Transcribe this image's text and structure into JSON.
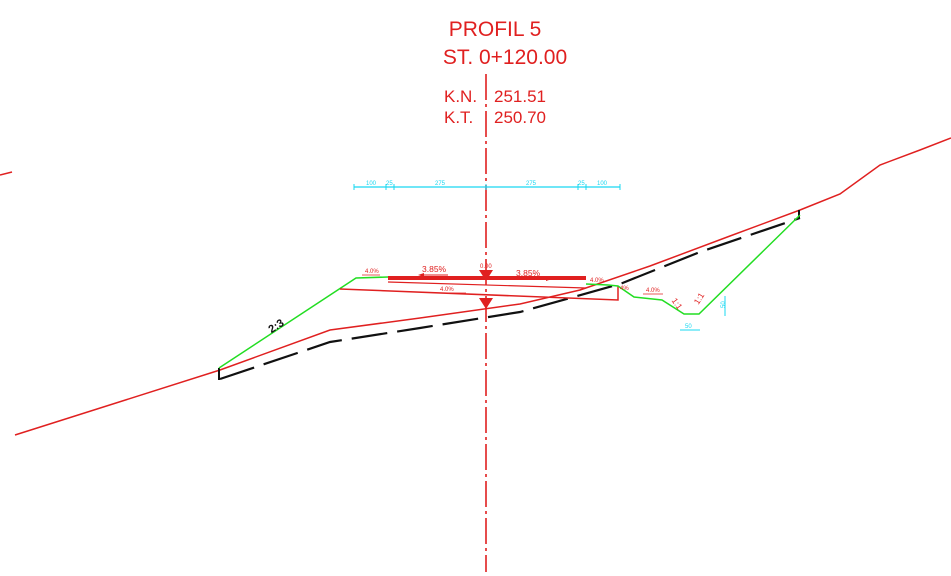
{
  "colors": {
    "red": "#e02020",
    "green": "#22dd22",
    "cyan": "#19d8f2",
    "black": "#111111",
    "background": "#ffffff"
  },
  "header": {
    "profile_title": "PROFIL 5",
    "station": "ST. 0+120.00",
    "kn_label": "K.N.",
    "kn_value": "251.51",
    "kt_label": "K.T.",
    "kt_value": "250.70"
  },
  "dimension_line": {
    "left_outer": "100",
    "left_inner": "25",
    "left_lane": "275",
    "right_lane": "275",
    "right_inner": "25",
    "right_outer": "100"
  },
  "road": {
    "left_slope": "3.85%",
    "right_slope": "3.85%",
    "center_mark": "0.00",
    "subbase_slope": "4.0%",
    "left_shoulder": "4.0%",
    "right_shoulder": "4.0%"
  },
  "embankment": {
    "left_slope_ratio": "2:3"
  },
  "ditch": {
    "slope_a": "4.0%",
    "inner_slope": "1:1",
    "outer_slope": "1:1",
    "depth": "50",
    "bottom_width": "50",
    "edge_small": "4%"
  }
}
